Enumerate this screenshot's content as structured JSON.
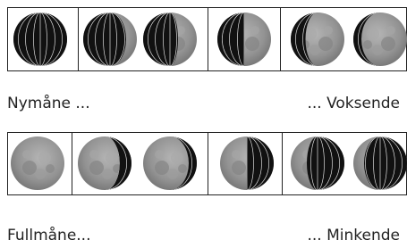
{
  "labels": {
    "new_moon": "Nymåne ...",
    "waxing": "... Voksende",
    "full_moon": "Fullmåne...",
    "waning": "... Minkende"
  }
}
